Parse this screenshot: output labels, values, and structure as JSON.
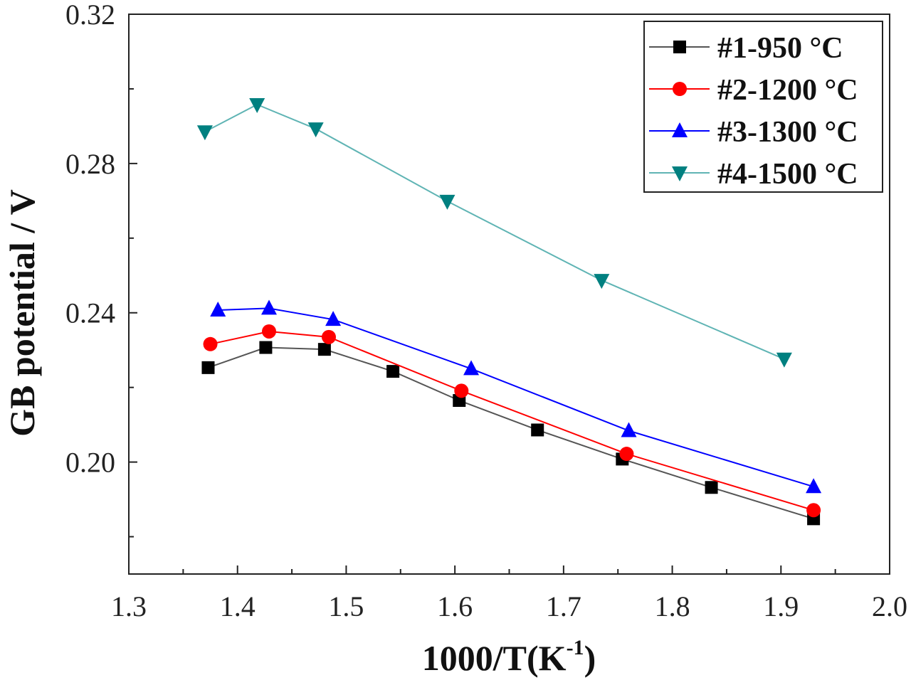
{
  "chart_data": {
    "type": "line",
    "title": "",
    "xlabel": "1000/T(K",
    "xlabel_sup": "-1",
    "xlabel_close": ")",
    "ylabel": "GB potential / V",
    "xlim": [
      1.3,
      2.0
    ],
    "ylim": [
      0.17,
      0.32
    ],
    "x_ticks": [
      "1.3",
      "1.4",
      "1.5",
      "1.6",
      "1.7",
      "1.8",
      "1.9",
      "2.0"
    ],
    "y_ticks": [
      "0.20",
      "0.24",
      "0.28",
      "0.32"
    ],
    "grid": false,
    "legend_position": "top-right",
    "series": [
      {
        "name": "#1-950 °C",
        "color": "#000000",
        "marker": "square",
        "x": [
          1.373,
          1.426,
          1.48,
          1.543,
          1.604,
          1.676,
          1.754,
          1.836,
          1.93
        ],
        "y": [
          0.2253,
          0.2307,
          0.2302,
          0.2243,
          0.2165,
          0.2086,
          0.2008,
          0.1932,
          0.1848
        ]
      },
      {
        "name": "#2-1200 °C",
        "color": "#ff0000",
        "marker": "circle",
        "x": [
          1.375,
          1.429,
          1.484,
          1.606,
          1.758,
          1.93
        ],
        "y": [
          0.2316,
          0.235,
          0.2335,
          0.2191,
          0.2022,
          0.1871
        ]
      },
      {
        "name": "#3-1300 °C",
        "color": "#0000ff",
        "marker": "triangle-up",
        "x": [
          1.382,
          1.429,
          1.488,
          1.615,
          1.76,
          1.93
        ],
        "y": [
          0.2407,
          0.2412,
          0.2382,
          0.225,
          0.2084,
          0.1934
        ]
      },
      {
        "name": "#4-1500 °C",
        "color": "#008080",
        "marker": "triangle-down",
        "x": [
          1.37,
          1.418,
          1.472,
          1.593,
          1.735,
          1.903
        ],
        "y": [
          0.2885,
          0.2958,
          0.2893,
          0.2699,
          0.2487,
          0.2276
        ]
      }
    ]
  }
}
